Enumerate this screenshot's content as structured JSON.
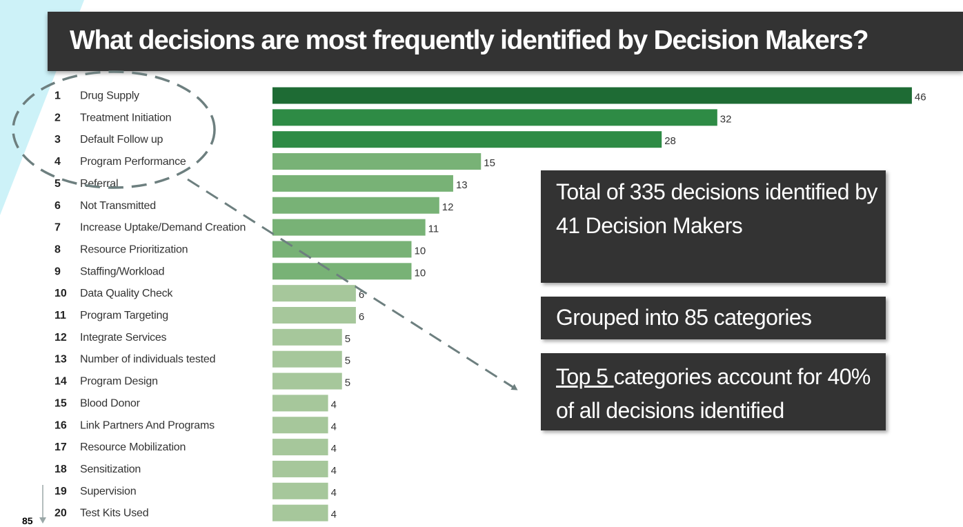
{
  "slide": {
    "title": "What decisions are most frequently identified by Decision Makers?",
    "page_number": "85"
  },
  "callouts": {
    "total": "Total of 335 decisions identified by 41 Decision Makers",
    "grouped": "Grouped into 85 categories",
    "top5_underlined": "Top 5 ",
    "top5_rest": "categories account for 40% of all decisions identified"
  },
  "colors": {
    "title_bar": "#333333",
    "bar_shades": [
      "#1e6b34",
      "#2e8b45",
      "#78b276",
      "#a6c79b"
    ],
    "accent_cyan": "#cdf2f8"
  },
  "chart_data": {
    "type": "bar",
    "orientation": "horizontal",
    "ranks": [
      "1",
      "2",
      "3",
      "4",
      "5",
      "6",
      "7",
      "8",
      "9",
      "10",
      "11",
      "12",
      "13",
      "14",
      "15",
      "16",
      "17",
      "18",
      "19",
      "20"
    ],
    "categories": [
      "Drug Supply",
      "Treatment Initiation",
      "Default Follow up",
      "Program Performance",
      "Referral",
      "Not Transmitted",
      "Increase Uptake/Demand Creation",
      "Resource Prioritization",
      "Staffing/Workload",
      "Data Quality Check",
      "Program Targeting",
      "Integrate Services",
      "Number of individuals tested",
      "Program Design",
      "Blood Donor",
      "Link Partners And Programs",
      "Resource Mobilization",
      "Sensitization",
      "Supervision",
      "Test Kits Used"
    ],
    "values": [
      46,
      32,
      28,
      15,
      13,
      12,
      11,
      10,
      10,
      6,
      6,
      5,
      5,
      5,
      4,
      4,
      4,
      4,
      4,
      4
    ],
    "data_labels": true,
    "grid": false,
    "legend": "none",
    "annotation": "dashed ellipse around top 5 categories with dashed arrow pointing to callout"
  }
}
